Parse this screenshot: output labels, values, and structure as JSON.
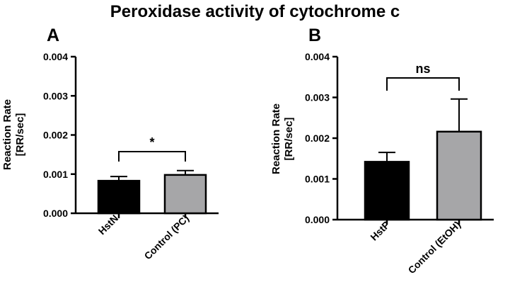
{
  "title": "Peroxidase activity of cytochrome c",
  "chart_data": [
    {
      "type": "bar",
      "panel": "A",
      "categories": [
        "HstN",
        "Control (PC)"
      ],
      "values": [
        0.00083,
        0.00098
      ],
      "errors": [
        0.00011,
        0.00011
      ],
      "colors": [
        "#000000",
        "#a6a6a8"
      ],
      "ylabel_line1": "Reaction Rate",
      "ylabel_line2": "[RR/sec]",
      "ylim": [
        0,
        0.004
      ],
      "yticks": [
        "0.000",
        "0.001",
        "0.002",
        "0.003",
        "0.004"
      ],
      "significance": "*"
    },
    {
      "type": "bar",
      "panel": "B",
      "categories": [
        "HstP",
        "Control (EtOH)"
      ],
      "values": [
        0.00142,
        0.00216
      ],
      "errors": [
        0.00023,
        0.0008
      ],
      "colors": [
        "#000000",
        "#a6a6a8"
      ],
      "ylabel_line1": "Reaction Rate",
      "ylabel_line2": "[RR/sec]",
      "ylim": [
        0,
        0.004
      ],
      "yticks": [
        "0.000",
        "0.001",
        "0.002",
        "0.003",
        "0.004"
      ],
      "significance": "ns"
    }
  ]
}
